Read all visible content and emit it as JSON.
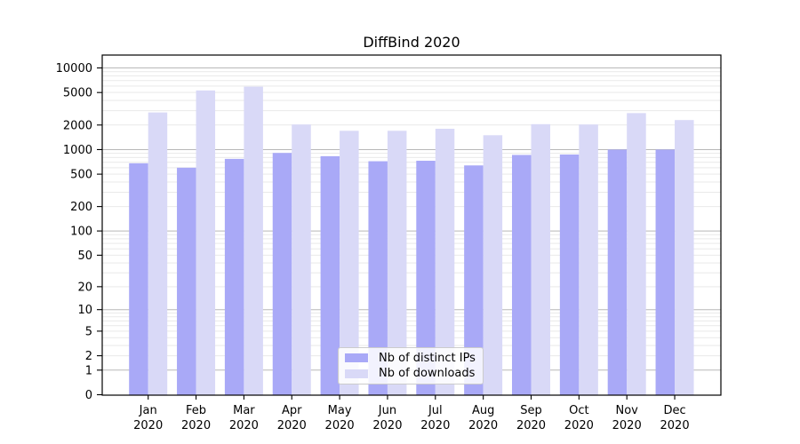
{
  "chart_data": {
    "type": "bar",
    "title": "DiffBind 2020",
    "categories": [
      "Jan",
      "Feb",
      "Mar",
      "Apr",
      "May",
      "Jun",
      "Jul",
      "Aug",
      "Sep",
      "Oct",
      "Nov",
      "Dec"
    ],
    "category_year": "2020",
    "series": [
      {
        "name": "Nb of distinct IPs",
        "color": "#a9a9f7",
        "values": [
          680,
          600,
          770,
          910,
          830,
          720,
          730,
          640,
          860,
          870,
          1000,
          1000
        ]
      },
      {
        "name": "Nb of downloads",
        "color": "#d9d9f7",
        "values": [
          2850,
          5300,
          5900,
          2030,
          1700,
          1700,
          1800,
          1500,
          2050,
          2030,
          2800,
          2300
        ]
      }
    ],
    "yscale": "log1p",
    "yticks": [
      0,
      1,
      2,
      5,
      10,
      20,
      50,
      100,
      200,
      500,
      1000,
      2000,
      5000,
      10000
    ],
    "major_grid_values": [
      1,
      10,
      100,
      1000,
      10000
    ],
    "ylim": [
      0,
      14000
    ],
    "grid": true,
    "legend_position": "lower center",
    "colors": {
      "bar_distinct_ips": "#a9a9f7",
      "bar_downloads": "#d9d9f7",
      "major_gridline": "#b8b8b8",
      "minor_gridline": "#e9e9e9",
      "axis": "#000000",
      "text": "#000000",
      "legend_border": "#cccccc",
      "background": "#ffffff"
    }
  }
}
